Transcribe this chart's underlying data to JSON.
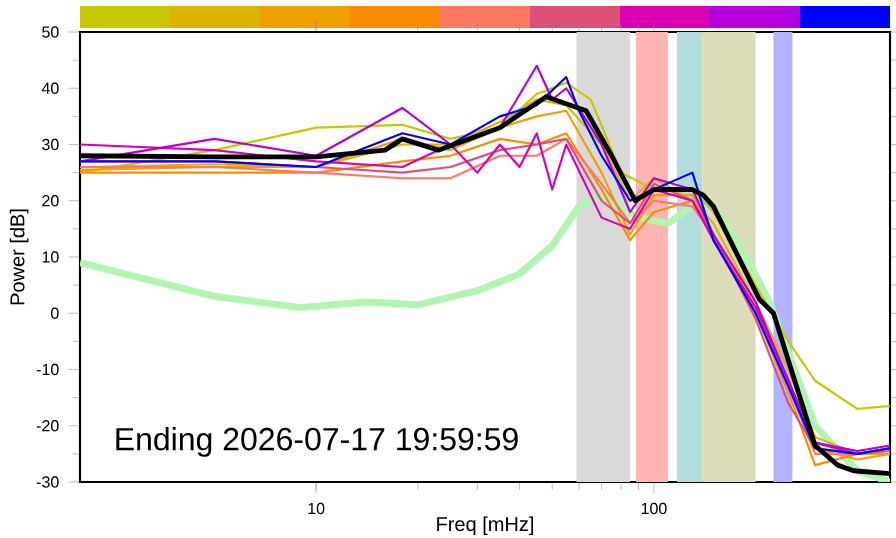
{
  "chart_data": {
    "type": "line",
    "xlabel": "Freq [mHz]",
    "ylabel": "Power [dB]",
    "log": "x",
    "xlim": [
      2,
      500
    ],
    "ylim": [
      -30,
      50
    ],
    "xticks": [
      10,
      100
    ],
    "yticks": [
      -30,
      -20,
      -10,
      0,
      10,
      20,
      30,
      40,
      50
    ],
    "annotations": [
      "Ending 2026-07-17 19:59:59"
    ],
    "bands": [
      {
        "axis": "x",
        "from": 59,
        "to": 85,
        "color": "#d9d9d9"
      },
      {
        "axis": "x",
        "from": 88.5,
        "to": 110,
        "color": "#ffb3b3"
      },
      {
        "axis": "x",
        "from": 117,
        "to": 139,
        "color": "#b3dcdc"
      },
      {
        "axis": "x",
        "from": 139,
        "to": 200,
        "color": "#dcdcb8"
      },
      {
        "axis": "x",
        "from": 226,
        "to": 257,
        "color": "#b3b3ff"
      }
    ],
    "series": [
      {
        "color": "#b0f5b0",
        "x": [
          2,
          5,
          9,
          14,
          20,
          30,
          40,
          50,
          60,
          70,
          90,
          110,
          130,
          150,
          180,
          220,
          300,
          400,
          500
        ],
        "values": [
          9,
          3,
          1,
          2,
          1.5,
          4,
          7,
          12,
          19,
          21,
          17,
          16,
          19,
          19,
          12,
          2,
          -20,
          -28,
          -30
        ]
      },
      {
        "color": "#c8c800",
        "x": [
          2,
          5,
          10,
          18,
          25,
          35,
          45,
          55,
          65,
          80,
          100,
          130,
          150,
          200,
          250,
          300,
          400,
          500
        ],
        "values": [
          25,
          29,
          33,
          33.5,
          31,
          33,
          39,
          41,
          38,
          25,
          22,
          22,
          18,
          5,
          -5,
          -12,
          -17,
          -16.5
        ]
      },
      {
        "color": "#dcb400",
        "x": [
          2,
          5,
          10,
          18,
          25,
          35,
          45,
          55,
          70,
          85,
          100,
          130,
          150,
          200,
          250,
          300,
          400,
          500
        ],
        "values": [
          26,
          26.5,
          26,
          30,
          30,
          34,
          38,
          37,
          30,
          20,
          24,
          20,
          16,
          2,
          -10,
          -22,
          -25,
          -25
        ]
      },
      {
        "color": "#f0a000",
        "x": [
          2,
          5,
          10,
          18,
          25,
          35,
          45,
          55,
          70,
          85,
          100,
          130,
          150,
          200,
          250,
          300,
          400,
          500
        ],
        "values": [
          25.5,
          26,
          26,
          31,
          29,
          33,
          35,
          36,
          25,
          14,
          21,
          21,
          14,
          1,
          -12,
          -24,
          -26,
          -25
        ]
      },
      {
        "color": "#ff8c00",
        "x": [
          2,
          5,
          10,
          18,
          25,
          35,
          45,
          55,
          70,
          85,
          100,
          130,
          150,
          200,
          250,
          300,
          400,
          500
        ],
        "values": [
          25,
          25,
          25,
          27,
          28,
          31,
          30,
          32,
          22,
          13,
          18,
          20,
          13,
          0,
          -14,
          -27,
          -25,
          -24
        ]
      },
      {
        "color": "#ff7864",
        "x": [
          2,
          5,
          10,
          18,
          25,
          35,
          45,
          55,
          70,
          85,
          100,
          130,
          150,
          200,
          250,
          300,
          400,
          500
        ],
        "values": [
          26,
          26,
          25,
          24,
          24,
          28,
          28,
          31,
          23,
          16,
          20,
          19,
          14,
          0,
          -13,
          -25,
          -25,
          -24
        ]
      },
      {
        "color": "#dc5078",
        "x": [
          2,
          5,
          10,
          18,
          25,
          35,
          45,
          55,
          70,
          85,
          100,
          130,
          150,
          200,
          250,
          300,
          400,
          500
        ],
        "values": [
          27,
          27,
          26,
          25,
          26,
          29,
          30,
          31,
          20,
          16,
          23,
          20,
          14,
          -1,
          -16,
          -24,
          -25,
          -24.5
        ]
      },
      {
        "color": "#dc00b4",
        "x": [
          2,
          5,
          10,
          18,
          25,
          30,
          35,
          40,
          45,
          50,
          55,
          70,
          85,
          100,
          130,
          150,
          200,
          250,
          300,
          400,
          500
        ],
        "values": [
          30,
          29,
          27,
          26,
          30,
          25,
          30,
          26,
          32,
          22,
          30,
          17,
          15,
          22,
          20,
          13,
          1,
          -12,
          -23,
          -25,
          -24
        ]
      },
      {
        "color": "#b400dc",
        "x": [
          2,
          5,
          10,
          18,
          25,
          35,
          45,
          50,
          55,
          70,
          85,
          100,
          130,
          150,
          200,
          250,
          300,
          400,
          500
        ],
        "values": [
          27,
          31,
          28,
          36.5,
          30,
          33,
          44,
          38,
          40,
          30,
          18,
          24,
          22,
          14,
          2,
          -12,
          -23,
          -24.5,
          -23.5
        ]
      },
      {
        "color": "#0000ff",
        "x": [
          2,
          5,
          10,
          18,
          25,
          35,
          45,
          55,
          60,
          70,
          85,
          100,
          130,
          150,
          200,
          250,
          300,
          400,
          500
        ],
        "values": [
          27,
          27,
          26,
          32,
          30,
          35,
          37,
          42,
          36,
          28,
          20,
          22,
          25,
          13,
          0,
          -13,
          -24,
          -25,
          -24
        ]
      },
      {
        "color": "#000000",
        "x": [
          2,
          5,
          10,
          16,
          18,
          23,
          35,
          48,
          63,
          75,
          88,
          100,
          130,
          140,
          150,
          205,
          226,
          300,
          350,
          390,
          500
        ],
        "values": [
          28,
          27.8,
          27.8,
          29,
          31,
          29,
          33,
          38.5,
          36,
          28,
          20,
          22,
          22,
          21,
          19,
          2.5,
          0,
          -23.5,
          -27,
          -28,
          -28.5
        ]
      }
    ]
  }
}
